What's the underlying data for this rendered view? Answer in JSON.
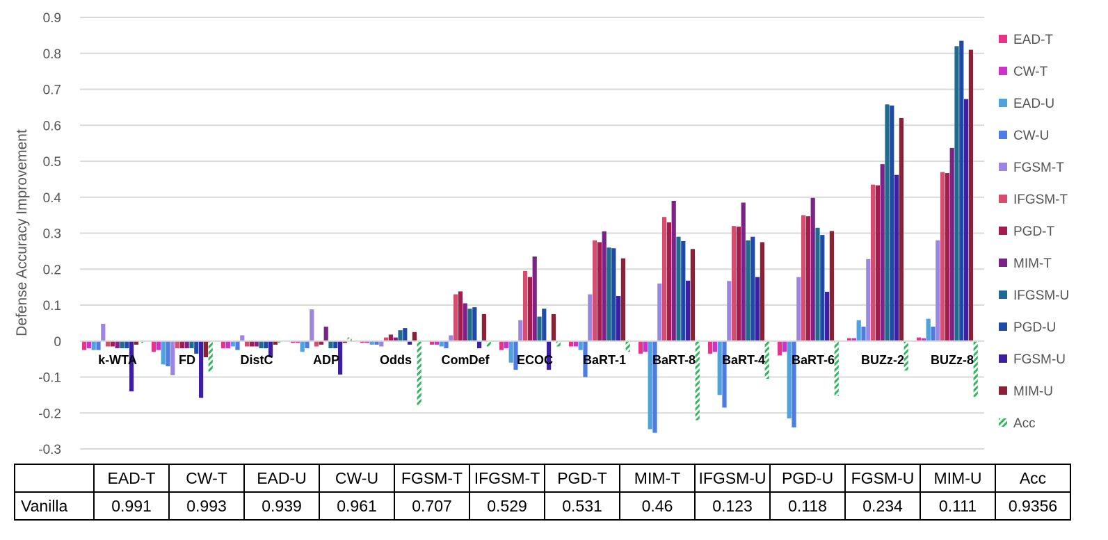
{
  "chart_data": {
    "type": "bar",
    "ylabel": "Defense Accuracy Improvement",
    "ylim": [
      -0.3,
      0.9
    ],
    "yticks": [
      "0.9",
      "0.8",
      "0.7",
      "0.6",
      "0.5",
      "0.4",
      "0.3",
      "0.2",
      "0.1",
      "0",
      "-0.1",
      "-0.2",
      "-0.3"
    ],
    "grid": true,
    "legend_position": "right",
    "categories": [
      "k-WTA",
      "FD",
      "DistC",
      "ADP",
      "Odds",
      "ComDef",
      "ECOC",
      "BaRT-1",
      "BaRT-8",
      "BaRT-4",
      "BaRT-6",
      "BUZz-2",
      "BUZz-8"
    ],
    "series": [
      {
        "name": "EAD-T",
        "color": "#e8338a",
        "values": [
          -0.025,
          -0.03,
          -0.02,
          -0.005,
          -0.005,
          -0.01,
          -0.025,
          -0.015,
          -0.035,
          -0.035,
          -0.04,
          0.008,
          0.01
        ]
      },
      {
        "name": "CW-T",
        "color": "#cc33cc",
        "values": [
          -0.02,
          -0.025,
          -0.02,
          -0.005,
          -0.005,
          -0.01,
          -0.02,
          -0.015,
          -0.03,
          -0.03,
          -0.03,
          0.008,
          0.008
        ]
      },
      {
        "name": "EAD-U",
        "color": "#4fa3dd",
        "values": [
          -0.025,
          -0.065,
          -0.015,
          -0.03,
          -0.01,
          -0.015,
          -0.06,
          -0.025,
          -0.245,
          -0.15,
          -0.215,
          0.058,
          0.062
        ]
      },
      {
        "name": "CW-U",
        "color": "#4d7de3",
        "values": [
          -0.025,
          -0.07,
          -0.025,
          -0.02,
          -0.01,
          -0.02,
          -0.08,
          -0.1,
          -0.255,
          -0.185,
          -0.24,
          0.04,
          0.04
        ]
      },
      {
        "name": "FGSM-T",
        "color": "#9c86e0",
        "values": [
          0.048,
          -0.095,
          0.016,
          0.088,
          -0.015,
          0.016,
          0.058,
          0.13,
          0.16,
          0.167,
          0.178,
          0.228,
          0.28
        ]
      },
      {
        "name": "IFGSM-T",
        "color": "#d64d6f",
        "values": [
          -0.015,
          -0.02,
          -0.015,
          -0.015,
          0.01,
          0.13,
          0.195,
          0.28,
          0.345,
          0.32,
          0.35,
          0.435,
          0.47
        ]
      },
      {
        "name": "PGD-T",
        "color": "#a31c4e",
        "values": [
          -0.015,
          -0.02,
          -0.015,
          -0.01,
          0.018,
          0.138,
          0.178,
          0.275,
          0.33,
          0.318,
          0.347,
          0.433,
          0.467
        ]
      },
      {
        "name": "MIM-T",
        "color": "#7b2387",
        "values": [
          -0.02,
          -0.02,
          -0.015,
          0.04,
          0.01,
          0.105,
          0.235,
          0.305,
          0.39,
          0.385,
          0.398,
          0.492,
          0.537
        ]
      },
      {
        "name": "IFGSM-U",
        "color": "#1e6b91",
        "values": [
          -0.02,
          -0.02,
          -0.02,
          -0.02,
          0.03,
          0.09,
          0.068,
          0.26,
          0.29,
          0.28,
          0.315,
          0.658,
          0.82
        ]
      },
      {
        "name": "PGD-U",
        "color": "#1f4aa6",
        "values": [
          -0.02,
          -0.035,
          -0.02,
          -0.02,
          0.036,
          0.094,
          0.09,
          0.258,
          0.278,
          0.29,
          0.295,
          0.655,
          0.835
        ]
      },
      {
        "name": "FGSM-U",
        "color": "#3d1fa0",
        "values": [
          -0.14,
          -0.158,
          -0.045,
          -0.093,
          -0.01,
          -0.02,
          -0.08,
          0.125,
          0.168,
          0.178,
          0.137,
          0.462,
          0.673
        ]
      },
      {
        "name": "MIM-U",
        "color": "#8a2135",
        "values": [
          -0.01,
          -0.045,
          -0.01,
          -0.005,
          0.025,
          0.075,
          0.075,
          0.23,
          0.256,
          0.275,
          0.306,
          0.62,
          0.81
        ]
      },
      {
        "name": "Acc",
        "color": "#2db85a",
        "pattern": "diagonal-stripes",
        "values": [
          -0.005,
          -0.085,
          -0.005,
          0.01,
          -0.178,
          -0.015,
          -0.015,
          -0.03,
          -0.22,
          -0.105,
          -0.153,
          -0.082,
          -0.155
        ]
      }
    ]
  },
  "table": {
    "row_label": "Vanilla",
    "headers": [
      "EAD-T",
      "CW-T",
      "EAD-U",
      "CW-U",
      "FGSM-T",
      "IFGSM-T",
      "PGD-T",
      "MIM-T",
      "IFGSM-U",
      "PGD-U",
      "FGSM-U",
      "MIM-U",
      "Acc"
    ],
    "values": [
      "0.991",
      "0.993",
      "0.939",
      "0.961",
      "0.707",
      "0.529",
      "0.531",
      "0.46",
      "0.123",
      "0.118",
      "0.234",
      "0.111",
      "0.9356"
    ]
  }
}
